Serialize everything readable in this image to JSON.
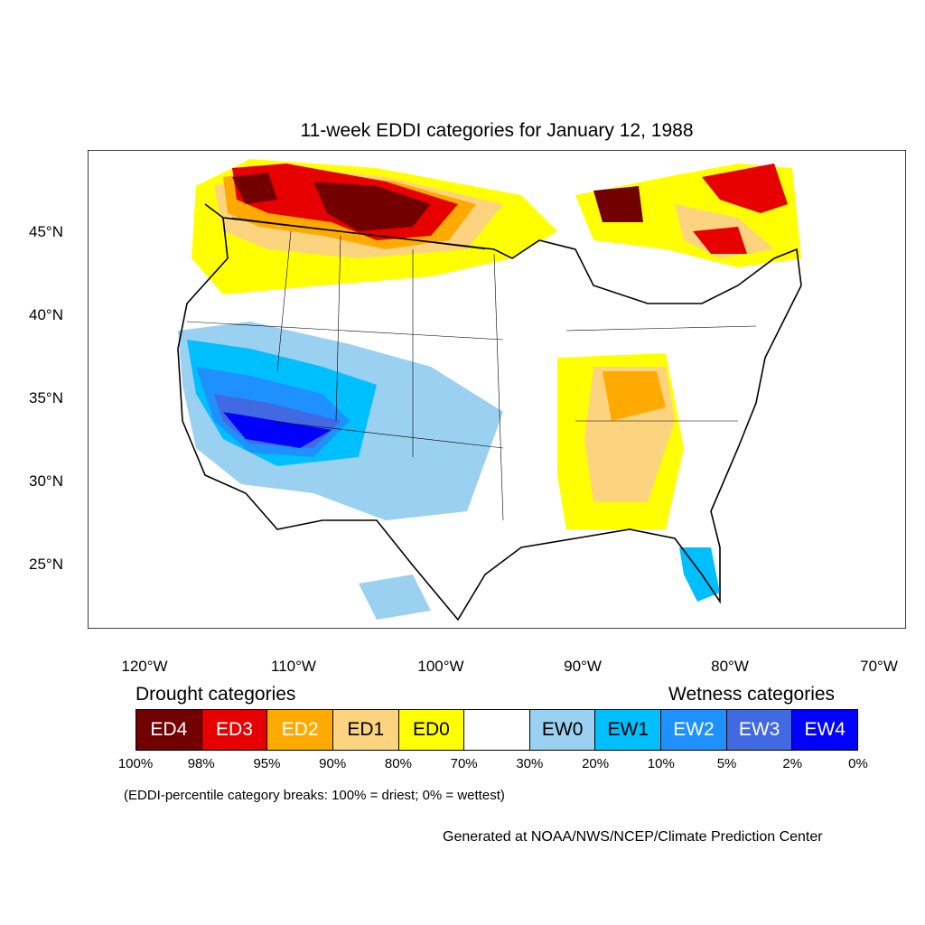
{
  "title": "11-week EDDI categories for January 12, 1988",
  "latitude_labels": [
    "45°N",
    "40°N",
    "35°N",
    "30°N",
    "25°N"
  ],
  "longitude_labels": [
    "120°W",
    "110°W",
    "100°W",
    "90°W",
    "80°W",
    "70°W"
  ],
  "legend": {
    "drought_heading": "Drought categories",
    "wetness_heading": "Wetness categories",
    "categories": [
      {
        "label": "ED4",
        "color": "#730000",
        "text_color": "#ffffff"
      },
      {
        "label": "ED3",
        "color": "#e60000",
        "text_color": "#ffffff"
      },
      {
        "label": "ED2",
        "color": "#ffaa00",
        "text_color": "#ffffff"
      },
      {
        "label": "ED1",
        "color": "#fcd37f",
        "text_color": "#000000"
      },
      {
        "label": "ED0",
        "color": "#ffff00",
        "text_color": "#000000"
      },
      {
        "label": "",
        "color": "#ffffff",
        "text_color": "#000000"
      },
      {
        "label": "EW0",
        "color": "#9ad0f0",
        "text_color": "#000000"
      },
      {
        "label": "EW1",
        "color": "#00bfff",
        "text_color": "#000000"
      },
      {
        "label": "EW2",
        "color": "#1e90ff",
        "text_color": "#ffffff"
      },
      {
        "label": "EW3",
        "color": "#4169e1",
        "text_color": "#ffffff"
      },
      {
        "label": "EW4",
        "color": "#0000ff",
        "text_color": "#ffffff"
      }
    ],
    "breaks": [
      "100%",
      "98%",
      "95%",
      "90%",
      "80%",
      "70%",
      "30%",
      "20%",
      "10%",
      "5%",
      "2%",
      "0%"
    ]
  },
  "note": "(EDDI-percentile category breaks: 100% = driest; 0% = wettest)",
  "credit": "Generated at NOAA/NWS/NCEP/Climate Prediction Center"
}
